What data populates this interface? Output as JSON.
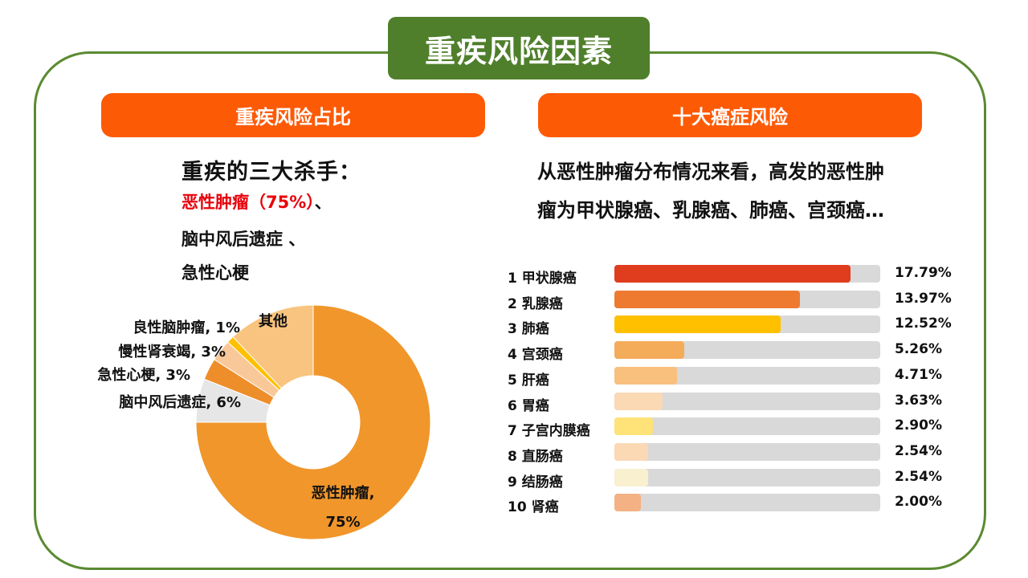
{
  "main_title": "重疾风险因素",
  "left": {
    "title": "重疾风险占比",
    "heading": "重疾的三大杀手：",
    "line1_red": "恶性肿瘤（75%）",
    "line1_suffix": "、",
    "line2": "脑中风后遗症 、",
    "line3": "急性心梗"
  },
  "right": {
    "title": "十大癌症风险",
    "desc1": "从恶性肿瘤分布情况来看，高发的恶性肿",
    "desc2": "瘤为甲状腺癌、乳腺癌、肺癌、宫颈癌…"
  },
  "chart_data": [
    {
      "type": "pie",
      "style": "donut",
      "slices": [
        {
          "label": "恶性肿瘤,",
          "label2": "75%",
          "value": 75,
          "color": "#f0962b"
        },
        {
          "label": "脑中风后遗症, 6%",
          "value": 6,
          "color": "#e6e6e6"
        },
        {
          "label": "急性心梗, 3%",
          "value": 3,
          "color": "#ee8e2a"
        },
        {
          "label": "慢性肾衰竭, 3%",
          "value": 3,
          "color": "#f8c898"
        },
        {
          "label": "良性脑肿瘤, 1%",
          "value": 1,
          "color": "#ffc000"
        },
        {
          "label": "其他",
          "value": 12,
          "color": "#f9c47f"
        }
      ]
    },
    {
      "type": "bar",
      "orientation": "horizontal",
      "xlim": [
        0,
        20
      ],
      "items": [
        {
          "rank": "1",
          "name": "甲状腺癌",
          "value": 17.79,
          "label": "17.79%",
          "color": "#e03c1e"
        },
        {
          "rank": "2",
          "name": "乳腺癌",
          "value": 13.97,
          "label": "13.97%",
          "color": "#ee7a30"
        },
        {
          "rank": "3",
          "name": "肺癌",
          "value": 12.52,
          "label": "12.52%",
          "color": "#ffc000"
        },
        {
          "rank": "4",
          "name": "宫颈癌",
          "value": 5.26,
          "label": "5.26%",
          "color": "#f5ac5a"
        },
        {
          "rank": "5",
          "name": "肝癌",
          "value": 4.71,
          "label": "4.71%",
          "color": "#f9bf7d"
        },
        {
          "rank": "6",
          "name": "胃癌",
          "value": 3.63,
          "label": "3.63%",
          "color": "#fbd9b5"
        },
        {
          "rank": "7",
          "name": "子宫内膜癌",
          "value": 2.9,
          "label": "2.90%",
          "color": "#ffe278"
        },
        {
          "rank": "8",
          "name": "直肠癌",
          "value": 2.54,
          "label": "2.54%",
          "color": "#fbd9b5"
        },
        {
          "rank": "9",
          "name": "结肠癌",
          "value": 2.54,
          "label": "2.54%",
          "color": "#f9f0cf"
        },
        {
          "rank": "10",
          "name": "肾癌",
          "value": 2.0,
          "label": "2.00%",
          "color": "#f4b183"
        }
      ]
    }
  ]
}
